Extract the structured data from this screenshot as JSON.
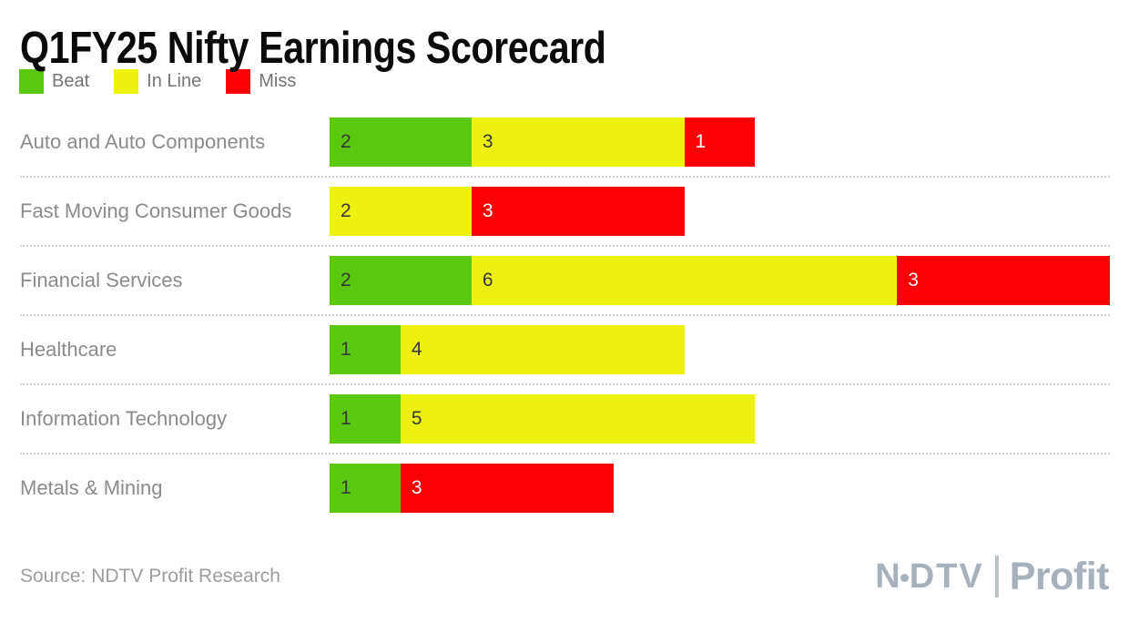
{
  "title": "Q1FY25 Nifty Earnings Scorecard",
  "source": "Source: NDTV Profit Research",
  "logo": {
    "ndtv_n": "N",
    "ndtv_dtv": "DTV",
    "profit": "Profit"
  },
  "colors": {
    "beat": "#5ac80f",
    "in_line": "#eef011",
    "miss": "#fb0105",
    "category_label": "#8b8b8b",
    "legend_text": "#757575",
    "separator": "#d6d6d6",
    "source_text": "#9d9d9d",
    "logo": "#a7b1bb",
    "title_text": "#0a0a0a",
    "value_on_beat_inline": "#383838",
    "value_on_miss": "#ffffff"
  },
  "chart_data": {
    "type": "bar",
    "orientation": "horizontal",
    "stacked": true,
    "title": "Q1FY25 Nifty Earnings Scorecard",
    "xlabel": "",
    "ylabel": "",
    "xmax": 11,
    "grid": false,
    "legend_position": "top-left",
    "value_labels": "inside-left",
    "categories": [
      "Auto and Auto Components",
      "Fast Moving Consumer Goods",
      "Financial Services",
      "Healthcare",
      "Information Technology",
      "Metals & Mining"
    ],
    "series": [
      {
        "name": "Beat",
        "key": "beat",
        "color": "#5ac80f",
        "values": [
          2,
          0,
          2,
          1,
          1,
          1
        ]
      },
      {
        "name": "In Line",
        "key": "inline",
        "color": "#eef011",
        "values": [
          3,
          2,
          6,
          4,
          5,
          0
        ]
      },
      {
        "name": "Miss",
        "key": "miss",
        "color": "#fb0105",
        "values": [
          1,
          3,
          3,
          0,
          0,
          3
        ]
      }
    ]
  }
}
